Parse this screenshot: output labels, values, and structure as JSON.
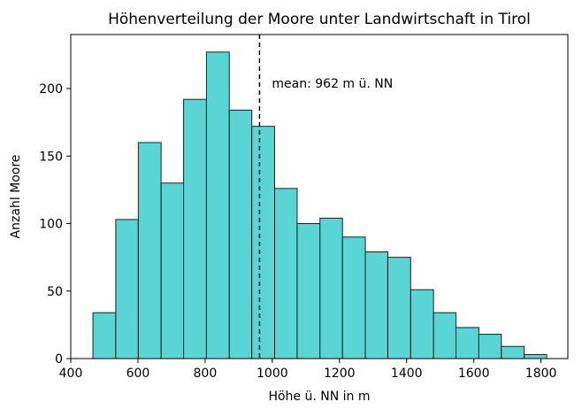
{
  "chart_data": {
    "type": "bar",
    "title": "Höhenverteilung der Moore unter Landwirtschaft in Tirol",
    "xlabel": "Höhe ü. NN in m",
    "ylabel": "Anzahl Moore",
    "xlim": [
      400,
      1880
    ],
    "ylim": [
      0,
      240
    ],
    "x_ticks": [
      400,
      600,
      800,
      1000,
      1200,
      1400,
      1600,
      1800
    ],
    "y_ticks": [
      0,
      50,
      100,
      150,
      200
    ],
    "bins": [
      {
        "start": 466,
        "end": 534,
        "count": 34
      },
      {
        "start": 534,
        "end": 601,
        "count": 103
      },
      {
        "start": 601,
        "end": 669,
        "count": 160
      },
      {
        "start": 669,
        "end": 736,
        "count": 130
      },
      {
        "start": 736,
        "end": 804,
        "count": 192
      },
      {
        "start": 804,
        "end": 872,
        "count": 227
      },
      {
        "start": 872,
        "end": 939,
        "count": 184
      },
      {
        "start": 939,
        "end": 1007,
        "count": 172
      },
      {
        "start": 1007,
        "end": 1074,
        "count": 126
      },
      {
        "start": 1074,
        "end": 1142,
        "count": 100
      },
      {
        "start": 1142,
        "end": 1209,
        "count": 104
      },
      {
        "start": 1209,
        "end": 1277,
        "count": 90
      },
      {
        "start": 1277,
        "end": 1344,
        "count": 79
      },
      {
        "start": 1344,
        "end": 1412,
        "count": 75
      },
      {
        "start": 1412,
        "end": 1480,
        "count": 51
      },
      {
        "start": 1480,
        "end": 1547,
        "count": 34
      },
      {
        "start": 1547,
        "end": 1615,
        "count": 23
      },
      {
        "start": 1615,
        "end": 1682,
        "count": 18
      },
      {
        "start": 1682,
        "end": 1750,
        "count": 9
      },
      {
        "start": 1750,
        "end": 1817,
        "count": 3
      }
    ],
    "mean_value": 962,
    "mean_label": "mean: 962 m ü. NN",
    "grid": false,
    "colors": {
      "bar_fill": "#5ad5d5",
      "bar_edge": "#1f1f1f",
      "axis": "#000000",
      "mean_line": "#000000"
    }
  }
}
